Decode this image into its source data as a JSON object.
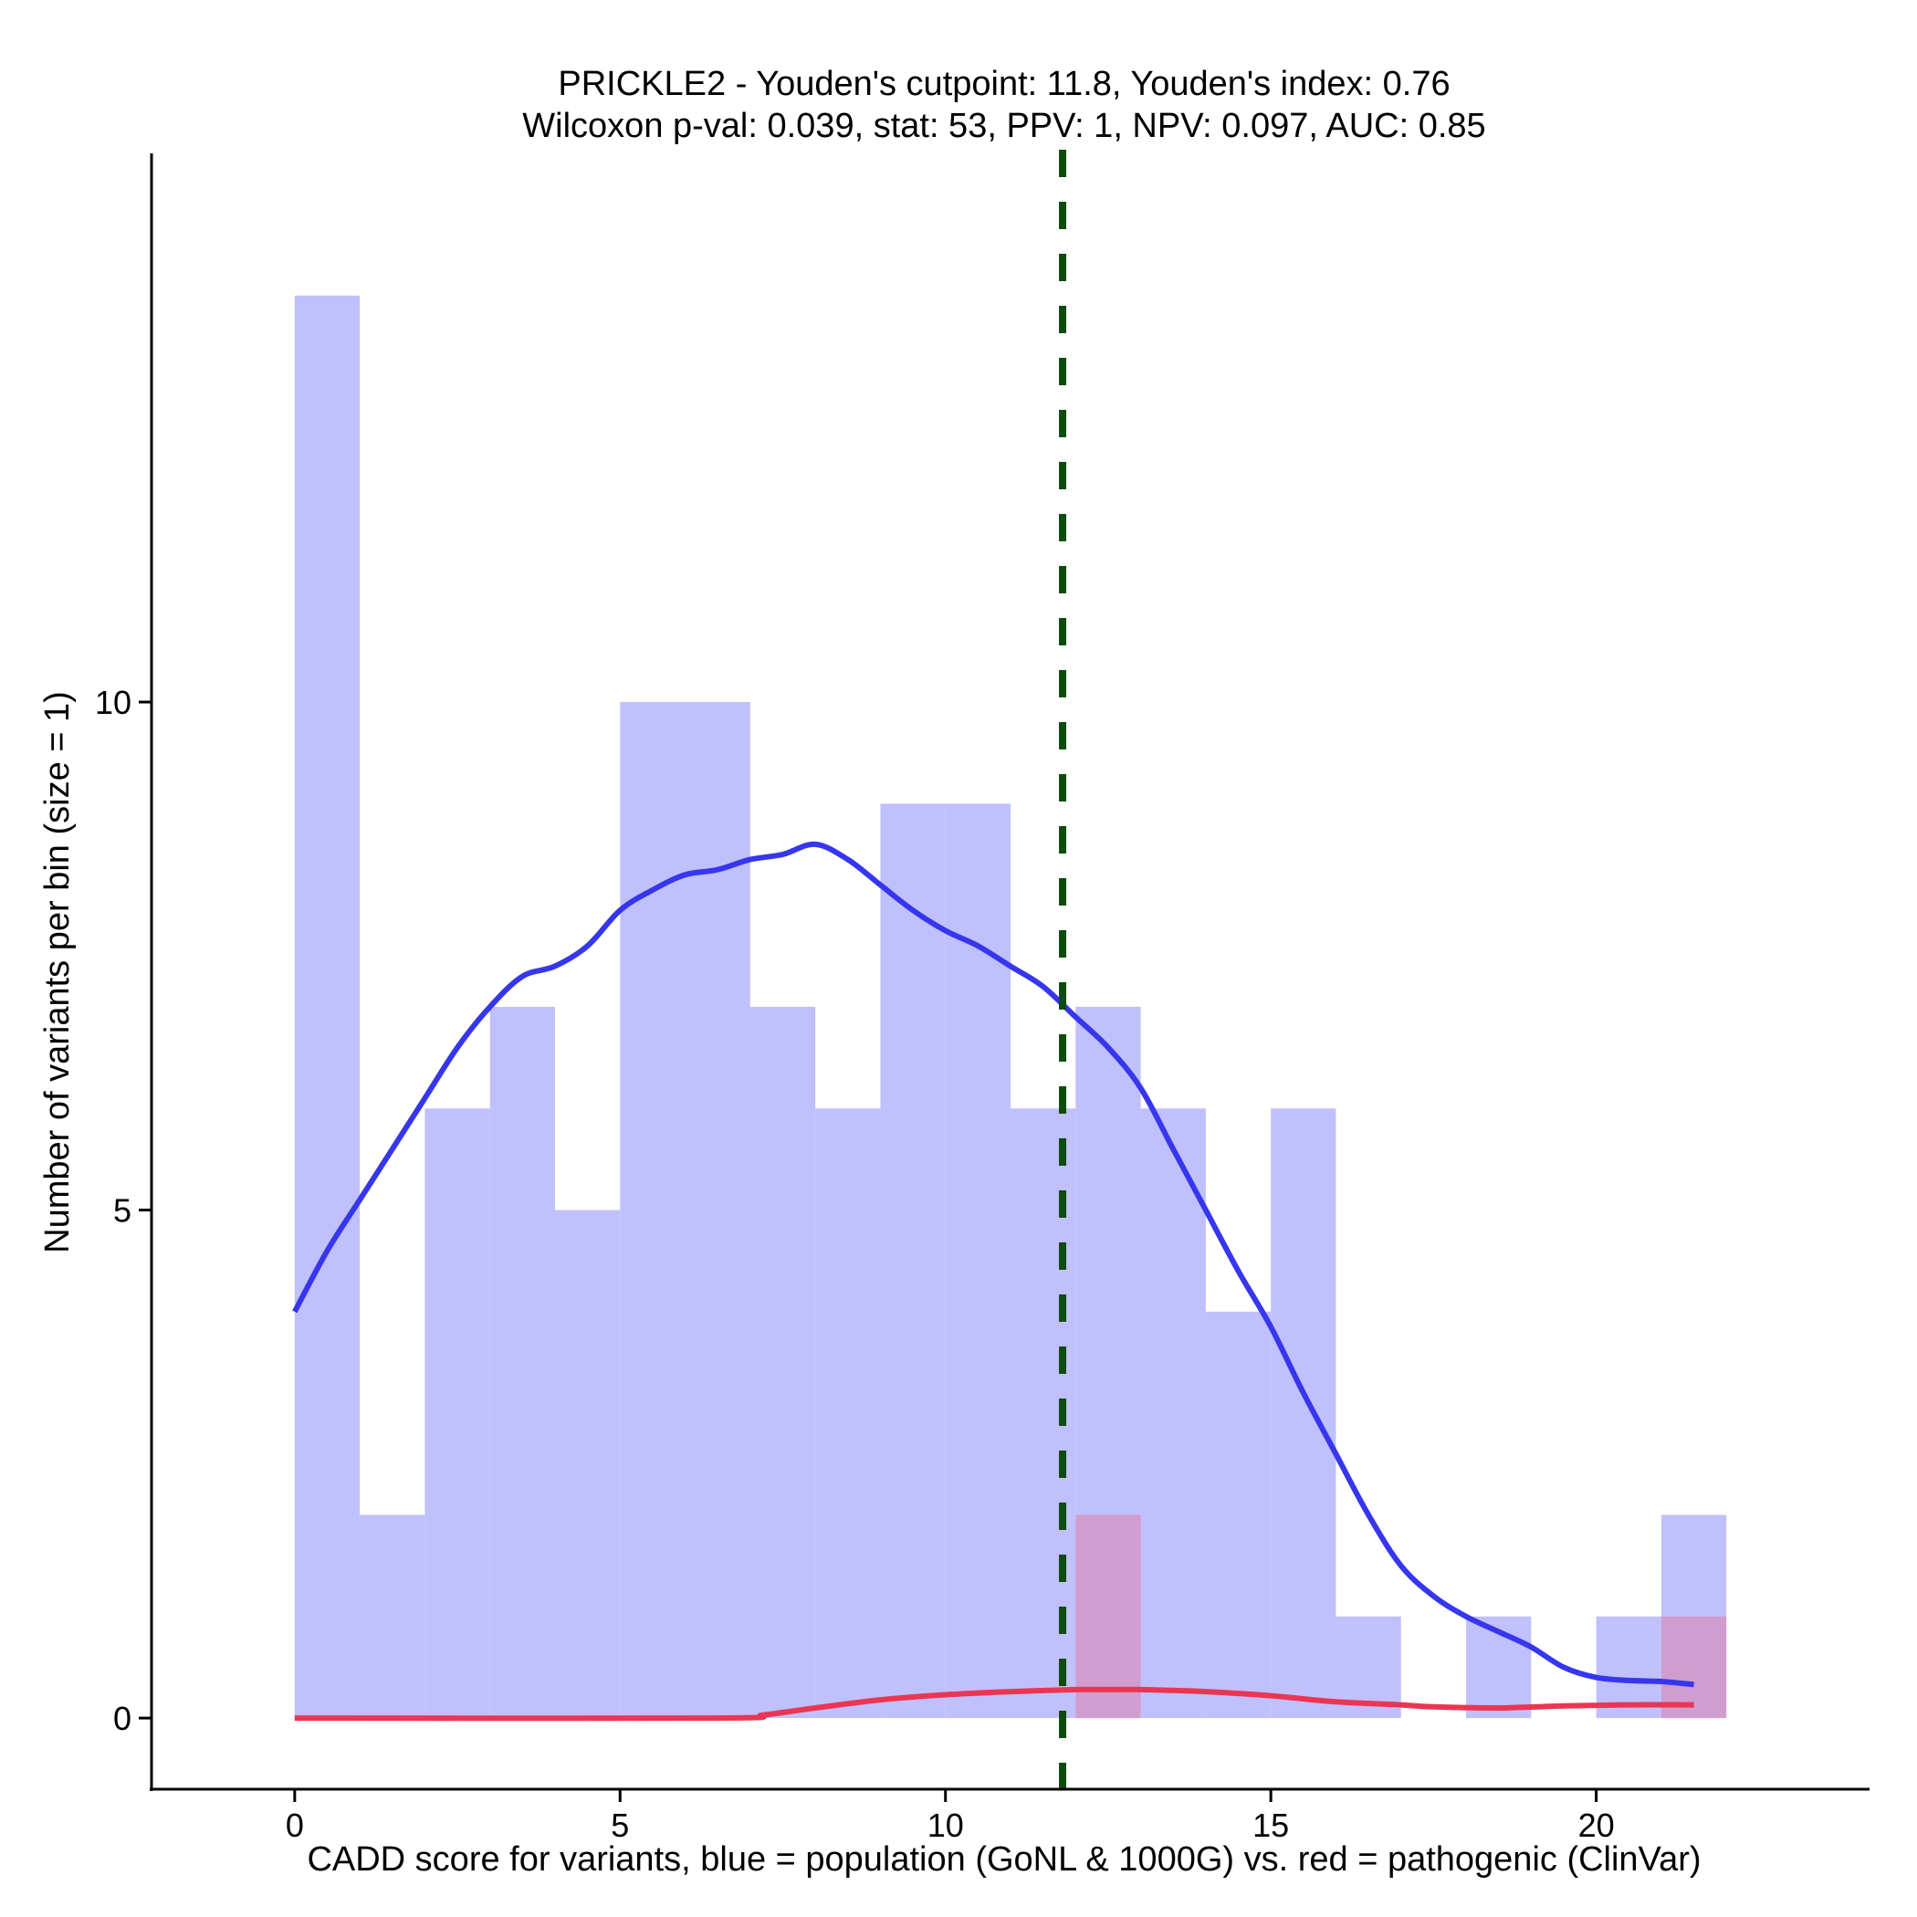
{
  "chart_data": {
    "type": "bar",
    "title_line1": "PRICKLE2 - Youden's cutpoint: 11.8, Youden's index: 0.76",
    "title_line2": "Wilcoxon p-val: 0.039, stat: 53, PPV: 1, NPV: 0.097, AUC: 0.85",
    "xlabel": "CADD score for variants, blue = population (GoNL & 1000G) vs. red = pathogenic (ClinVar)",
    "ylabel": "Number of variants per bin (size = 1)",
    "xlim": [
      -2.2,
      24.2
    ],
    "ylim": [
      -0.7,
      15.4
    ],
    "x_ticks": [
      0,
      5,
      10,
      15,
      20
    ],
    "x_tick_labels": [
      "0",
      "5",
      "10",
      "15",
      "20"
    ],
    "y_ticks": [
      0,
      5,
      10
    ],
    "y_tick_labels": [
      "0",
      "5",
      "10"
    ],
    "bin_size": 1,
    "cutpoint": 11.8,
    "colors": {
      "population_bar": "#c0c0fd",
      "pathogenic_bar": "#d196c6",
      "population_line": "#3636ee",
      "pathogenic_line": "#ea3653",
      "cutpoint_line": "#0e4b0e"
    },
    "series": [
      {
        "name": "population (GoNL & 1000G)",
        "bins": [
          {
            "x0": 0,
            "count": 14
          },
          {
            "x0": 1,
            "count": 2
          },
          {
            "x0": 2,
            "count": 6
          },
          {
            "x0": 3,
            "count": 7
          },
          {
            "x0": 4,
            "count": 5
          },
          {
            "x0": 5,
            "count": 10
          },
          {
            "x0": 6,
            "count": 10
          },
          {
            "x0": 7,
            "count": 7
          },
          {
            "x0": 8,
            "count": 6
          },
          {
            "x0": 9,
            "count": 9
          },
          {
            "x0": 10,
            "count": 9
          },
          {
            "x0": 11,
            "count": 6
          },
          {
            "x0": 12,
            "count": 7
          },
          {
            "x0": 13,
            "count": 6
          },
          {
            "x0": 14,
            "count": 4
          },
          {
            "x0": 15,
            "count": 6
          },
          {
            "x0": 16,
            "count": 1
          },
          {
            "x0": 18,
            "count": 1
          },
          {
            "x0": 20,
            "count": 1
          },
          {
            "x0": 21,
            "count": 2
          }
        ],
        "density_curve": [
          [
            0,
            4.0
          ],
          [
            0.5,
            4.6
          ],
          [
            1,
            5.1
          ],
          [
            1.5,
            5.6
          ],
          [
            2,
            6.1
          ],
          [
            2.5,
            6.6
          ],
          [
            3,
            7.0
          ],
          [
            3.5,
            7.3
          ],
          [
            4,
            7.4
          ],
          [
            4.5,
            7.6
          ],
          [
            5,
            7.95
          ],
          [
            5.5,
            8.15
          ],
          [
            6,
            8.3
          ],
          [
            6.5,
            8.35
          ],
          [
            7,
            8.45
          ],
          [
            7.5,
            8.5
          ],
          [
            8,
            8.6
          ],
          [
            8.5,
            8.45
          ],
          [
            9,
            8.2
          ],
          [
            9.5,
            7.95
          ],
          [
            10,
            7.75
          ],
          [
            10.5,
            7.6
          ],
          [
            11,
            7.4
          ],
          [
            11.5,
            7.2
          ],
          [
            12,
            6.9
          ],
          [
            12.5,
            6.6
          ],
          [
            13,
            6.2
          ],
          [
            13.5,
            5.6
          ],
          [
            14,
            5.0
          ],
          [
            14.5,
            4.4
          ],
          [
            15,
            3.85
          ],
          [
            15.5,
            3.2
          ],
          [
            16,
            2.6
          ],
          [
            16.5,
            2.0
          ],
          [
            17,
            1.5
          ],
          [
            17.5,
            1.2
          ],
          [
            18,
            1.0
          ],
          [
            18.5,
            0.85
          ],
          [
            19,
            0.7
          ],
          [
            19.5,
            0.5
          ],
          [
            20,
            0.4
          ],
          [
            20.5,
            0.37
          ],
          [
            21,
            0.36
          ],
          [
            21.5,
            0.33
          ]
        ]
      },
      {
        "name": "pathogenic (ClinVar)",
        "bins": [
          {
            "x0": 12,
            "count": 2
          },
          {
            "x0": 21,
            "count": 1
          }
        ],
        "density_curve": [
          [
            0,
            0.0
          ],
          [
            6.5,
            0.0
          ],
          [
            7.2,
            0.03
          ],
          [
            8,
            0.1
          ],
          [
            9,
            0.18
          ],
          [
            10,
            0.23
          ],
          [
            11,
            0.26
          ],
          [
            12,
            0.28
          ],
          [
            12.5,
            0.28
          ],
          [
            13,
            0.28
          ],
          [
            14,
            0.26
          ],
          [
            15,
            0.22
          ],
          [
            16,
            0.16
          ],
          [
            17,
            0.13
          ],
          [
            17.5,
            0.11
          ],
          [
            18.5,
            0.1
          ],
          [
            19.5,
            0.12
          ],
          [
            20.5,
            0.13
          ],
          [
            21.5,
            0.13
          ]
        ]
      }
    ]
  }
}
